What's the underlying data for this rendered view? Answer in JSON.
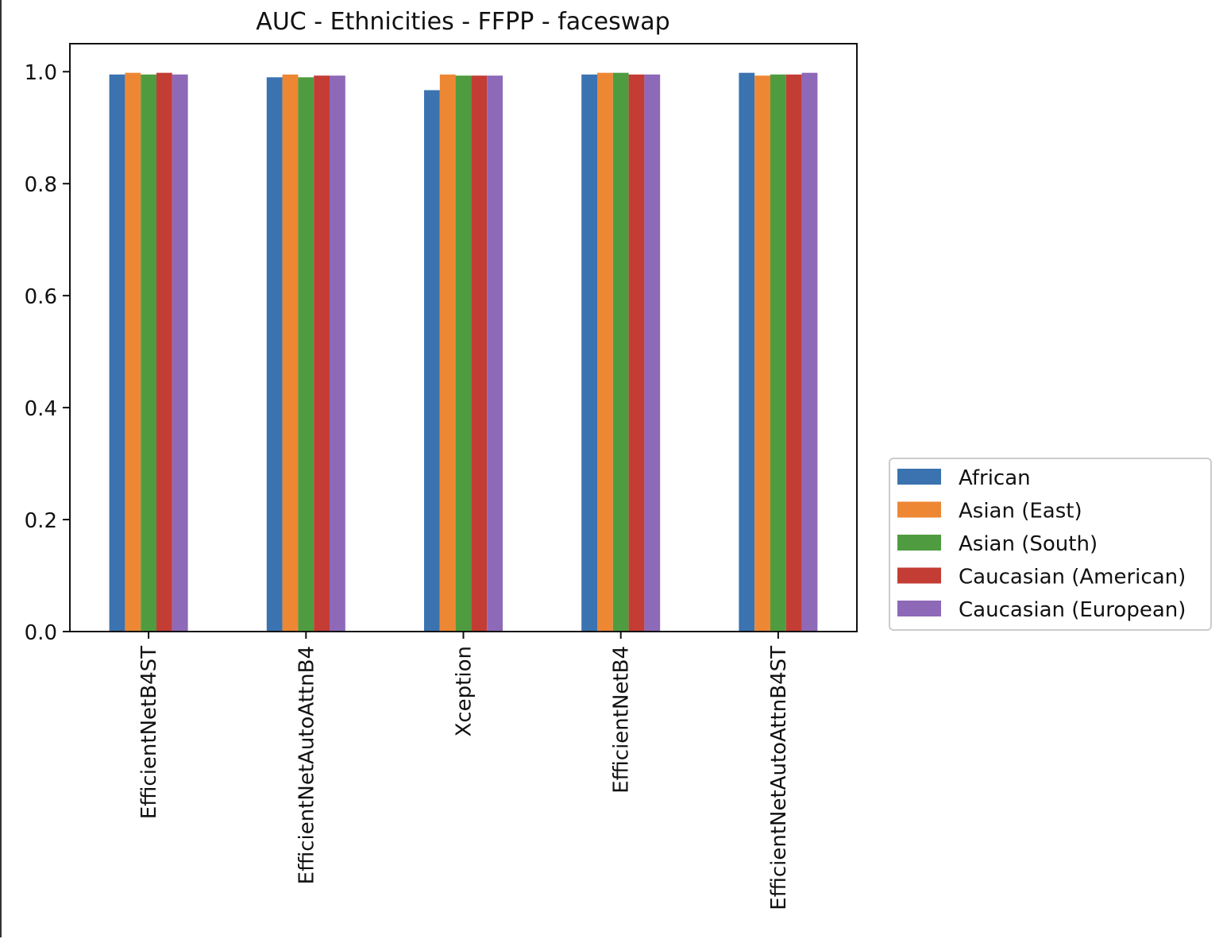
{
  "chart_data": {
    "type": "bar",
    "title": "AUC - Ethnicities - FFPP - faceswap",
    "xlabel": "",
    "ylabel": "",
    "ylim": [
      0,
      1.05
    ],
    "yticks": [
      "0.0",
      "0.2",
      "0.4",
      "0.6",
      "0.8",
      "1.0"
    ],
    "grid": false,
    "legend_position": "outside-right",
    "categories": [
      "EfficientNetB4ST",
      "EfficientNetAutoAttnB4",
      "Xception",
      "EfficientNetB4",
      "EfficientNetAutoAttnB4ST"
    ],
    "series": [
      {
        "name": "African",
        "color": "#3a73b0",
        "values": [
          0.995,
          0.99,
          0.967,
          0.995,
          0.998
        ]
      },
      {
        "name": "Asian (East)",
        "color": "#ee8734",
        "values": [
          0.998,
          0.995,
          0.995,
          0.998,
          0.993
        ]
      },
      {
        "name": "Asian (South)",
        "color": "#4f9c40",
        "values": [
          0.995,
          0.99,
          0.993,
          0.998,
          0.995
        ]
      },
      {
        "name": "Caucasian (American)",
        "color": "#c33d35",
        "values": [
          0.998,
          0.993,
          0.993,
          0.995,
          0.995
        ]
      },
      {
        "name": "Caucasian (European)",
        "color": "#8d69b8",
        "values": [
          0.995,
          0.993,
          0.993,
          0.995,
          0.998
        ]
      }
    ]
  }
}
